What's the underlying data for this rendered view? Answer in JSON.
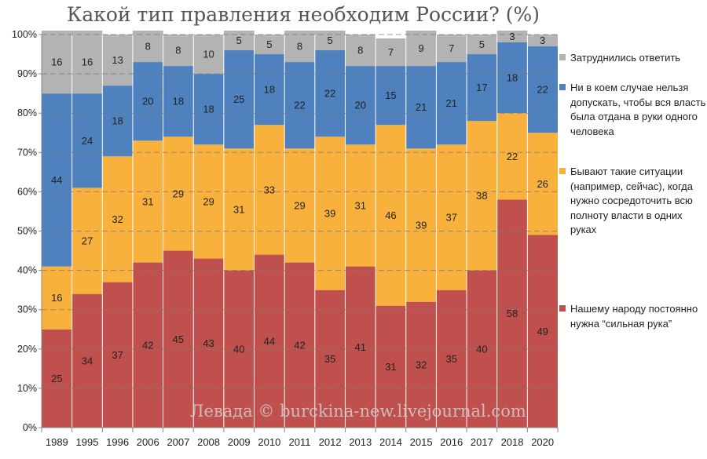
{
  "chart_data": {
    "type": "bar",
    "stacked": true,
    "title": "Какой тип правления необходим России? (%)",
    "categories": [
      "1989",
      "1995",
      "1996",
      "2006",
      "2007",
      "2008",
      "2009",
      "2010",
      "2011",
      "2012",
      "2013",
      "2014",
      "2015",
      "2016",
      "2017",
      "2018",
      "2020"
    ],
    "ylim": [
      0,
      100
    ],
    "yticks": [
      "0%",
      "10%",
      "20%",
      "30%",
      "40%",
      "50%",
      "60%",
      "70%",
      "80%",
      "90%",
      "100%"
    ],
    "grid": "horizontal dashed",
    "legend_position": "right",
    "series": [
      {
        "name": "Нашему народу постоянно нужна “сильная рука”",
        "color": "#c0504d",
        "values": [
          25,
          34,
          37,
          42,
          45,
          43,
          40,
          44,
          42,
          35,
          41,
          31,
          32,
          35,
          40,
          58,
          49
        ]
      },
      {
        "name": "Бывают такие ситуации (например, сейчас), когда нужно сосредоточить всю полноту власти в одних руках",
        "color": "#f9b13e",
        "values": [
          16,
          27,
          32,
          31,
          29,
          29,
          31,
          33,
          29,
          39,
          31,
          46,
          39,
          37,
          38,
          22,
          26
        ]
      },
      {
        "name": "Ни в коем случае нельзя допускать, чтобы вся власть была отдана в руки одного человека",
        "color": "#4e81bd",
        "values": [
          44,
          24,
          18,
          20,
          18,
          18,
          25,
          18,
          22,
          22,
          20,
          15,
          21,
          21,
          17,
          18,
          22
        ]
      },
      {
        "name": "Затруднились ответить",
        "color": "#b3b3b3",
        "values": [
          16,
          16,
          13,
          8,
          8,
          10,
          5,
          5,
          8,
          5,
          8,
          7,
          9,
          7,
          5,
          3,
          3
        ]
      }
    ]
  },
  "watermark": "Левада © burckina-new.livejournal.com"
}
